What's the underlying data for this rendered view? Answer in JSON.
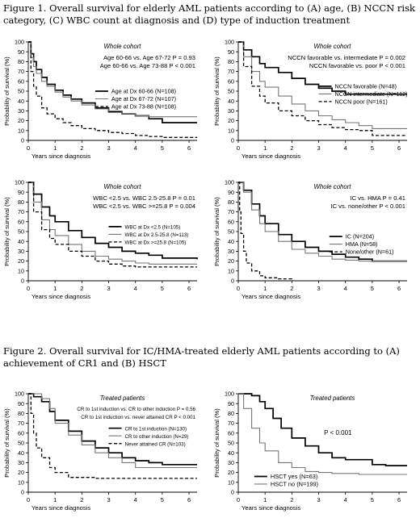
{
  "figure1": {
    "caption": "Figure 1.  Overall survival for elderly AML patients according to (A) age, (B) NCCN risk category, (C) WBC count at diagnosis and (D) type of induction treatment"
  },
  "figure2": {
    "caption": "Figure 2.  Overall survival for IC/HMA-treated elderly AML patients according to (A) achievement of CR1 and (B) HSCT"
  },
  "chart_data": [
    {
      "type": "line",
      "panel_title": "Whole cohort",
      "annotations": [
        "Age 60-66 vs. Age 67-72 P = 0.93",
        "Age 60-66 vs. Age 73-88 P < 0.001"
      ],
      "xlabel": "Years since diagnosis",
      "ylabel": "Probability of survival (%)",
      "xlim": [
        0,
        6.3
      ],
      "ylim": [
        0,
        100
      ],
      "xticks": [
        0,
        1,
        2,
        3,
        4,
        5,
        6
      ],
      "yticks": [
        0,
        10,
        20,
        30,
        40,
        50,
        60,
        70,
        80,
        90,
        100
      ],
      "legend_position": "center-right",
      "series": [
        {
          "name": "Age at Dx 60-66 (N=108)",
          "style": "solid-thick",
          "color": "#000000",
          "x": [
            0,
            0.1,
            0.2,
            0.3,
            0.5,
            0.7,
            1.0,
            1.3,
            1.6,
            2.0,
            2.5,
            3.0,
            3.5,
            4.0,
            4.5,
            5.0,
            6.3
          ],
          "y": [
            100,
            88,
            80,
            72,
            64,
            57,
            51,
            46,
            42,
            38,
            33,
            29,
            27,
            25,
            22,
            18,
            18
          ]
        },
        {
          "name": "Age at Dx 67-72 (N=107)",
          "style": "solid-thin",
          "color": "#777777",
          "x": [
            0,
            0.1,
            0.2,
            0.3,
            0.5,
            0.7,
            1.0,
            1.3,
            1.6,
            2.0,
            2.5,
            3.0,
            3.5,
            4.0,
            4.5,
            5.0,
            6.3
          ],
          "y": [
            100,
            84,
            75,
            68,
            60,
            55,
            49,
            44,
            40,
            36,
            32,
            30,
            27,
            25,
            24,
            24,
            24
          ]
        },
        {
          "name": "Age at Dx 73-88 (N=108)",
          "style": "dashed",
          "color": "#000000",
          "x": [
            0,
            0.1,
            0.2,
            0.3,
            0.5,
            0.7,
            1.0,
            1.3,
            1.6,
            2.0,
            2.5,
            3.0,
            3.5,
            4.0,
            4.5,
            5.0,
            6.3
          ],
          "y": [
            100,
            70,
            55,
            45,
            33,
            27,
            22,
            18,
            15,
            12,
            10,
            8,
            7,
            5,
            4,
            3,
            3
          ]
        }
      ]
    },
    {
      "type": "line",
      "panel_title": "Whole cohort",
      "annotations": [
        "NCCN favorable vs. intermediate P = 0.002",
        "NCCN favorable vs. poor P < 0.001"
      ],
      "xlabel": "Years since diagnosis",
      "ylabel": "Probability of survival (%)",
      "xlim": [
        0,
        6.3
      ],
      "ylim": [
        0,
        100
      ],
      "xticks": [
        0,
        1,
        2,
        3,
        4,
        5,
        6
      ],
      "yticks": [
        0,
        10,
        20,
        30,
        40,
        50,
        60,
        70,
        80,
        90,
        100
      ],
      "legend_position": "center-right",
      "series": [
        {
          "name": "NCCN favorable (N=48)",
          "style": "solid-thick",
          "color": "#000000",
          "x": [
            0,
            0.2,
            0.5,
            0.8,
            1.0,
            1.5,
            2.0,
            2.5,
            3.0,
            3.5,
            4.0,
            6.3
          ],
          "y": [
            100,
            92,
            85,
            78,
            74,
            69,
            63,
            57,
            53,
            50,
            47,
            47
          ]
        },
        {
          "name": "NCCN intermediate (N=112)",
          "style": "solid-thin",
          "color": "#777777",
          "x": [
            0,
            0.2,
            0.5,
            0.8,
            1.0,
            1.5,
            2.0,
            2.5,
            3.0,
            3.5,
            4.0,
            4.5,
            5.0,
            6.3
          ],
          "y": [
            100,
            85,
            70,
            60,
            54,
            45,
            37,
            30,
            25,
            21,
            18,
            15,
            12,
            12
          ]
        },
        {
          "name": "NCCN poor (N=161)",
          "style": "dashed",
          "color": "#000000",
          "x": [
            0,
            0.2,
            0.5,
            0.8,
            1.0,
            1.5,
            2.0,
            2.5,
            3.0,
            3.5,
            4.0,
            4.5,
            5.0,
            6.3
          ],
          "y": [
            100,
            75,
            55,
            45,
            38,
            30,
            25,
            20,
            16,
            13,
            11,
            10,
            5,
            5
          ]
        }
      ]
    },
    {
      "type": "line",
      "panel_title": "Whole cohort",
      "annotations": [
        "WBC <2.5 vs. WBC 2.5-25.8 P = 0.01",
        "WBC <2.5 vs. WBC >=25.8 P = 0.004"
      ],
      "xlabel": "Years since diagnosis",
      "ylabel": "Probability of survival (%)",
      "xlim": [
        0,
        6.3
      ],
      "ylim": [
        0,
        100
      ],
      "xticks": [
        0,
        1,
        2,
        3,
        4,
        5,
        6
      ],
      "yticks": [
        0,
        10,
        20,
        30,
        40,
        50,
        60,
        70,
        80,
        90,
        100
      ],
      "legend_position": "center-right",
      "series": [
        {
          "name": "WBC at Dx <2.5 (N=105)",
          "style": "solid-thick",
          "color": "#000000",
          "x": [
            0,
            0.2,
            0.5,
            0.8,
            1.0,
            1.5,
            2.0,
            2.5,
            3.0,
            3.5,
            4.0,
            4.5,
            5.0,
            6.3
          ],
          "y": [
            100,
            88,
            75,
            66,
            60,
            51,
            44,
            38,
            34,
            30,
            28,
            26,
            23,
            22
          ]
        },
        {
          "name": "WBC at Dx 2.5-25.8 (N=113)",
          "style": "solid-thin",
          "color": "#777777",
          "x": [
            0,
            0.2,
            0.5,
            0.8,
            1.0,
            1.5,
            2.0,
            2.5,
            3.0,
            3.5,
            4.0,
            4.5,
            5.0,
            6.3
          ],
          "y": [
            100,
            80,
            62,
            52,
            46,
            37,
            30,
            25,
            22,
            20,
            18,
            17,
            17,
            17
          ]
        },
        {
          "name": "WBC at Dx >=25.8 (N=105)",
          "style": "dashed",
          "color": "#000000",
          "x": [
            0,
            0.2,
            0.5,
            0.8,
            1.0,
            1.5,
            2.0,
            2.5,
            3.0,
            3.5,
            4.0,
            4.5,
            5.0,
            6.3
          ],
          "y": [
            100,
            70,
            52,
            43,
            37,
            30,
            25,
            20,
            17,
            15,
            14,
            14,
            14,
            14
          ]
        }
      ]
    },
    {
      "type": "line",
      "panel_title": "Whole cohort",
      "annotations": [
        "IC vs. HMA P = 0.41",
        "IC vs. none/other P < 0.001"
      ],
      "xlabel": "Years since diagnosis",
      "ylabel": "Probability of survival (%)",
      "xlim": [
        0,
        6.3
      ],
      "ylim": [
        0,
        100
      ],
      "xticks": [
        0,
        1,
        2,
        3,
        4,
        5,
        6
      ],
      "yticks": [
        0,
        10,
        20,
        30,
        40,
        50,
        60,
        70,
        80,
        90,
        100
      ],
      "legend_position": "center-right",
      "series": [
        {
          "name": "IC (N=204)",
          "style": "solid-thick",
          "color": "#000000",
          "x": [
            0,
            0.2,
            0.5,
            0.8,
            1.0,
            1.5,
            2.0,
            2.5,
            3.0,
            3.5,
            4.0,
            4.5,
            5.0,
            6.3
          ],
          "y": [
            100,
            92,
            78,
            66,
            58,
            47,
            40,
            34,
            30,
            27,
            24,
            22,
            20,
            20
          ]
        },
        {
          "name": "HMA (N=58)",
          "style": "solid-thin",
          "color": "#777777",
          "x": [
            0,
            0.2,
            0.5,
            0.8,
            1.0,
            1.5,
            2.0,
            2.5,
            3.0,
            3.5,
            4.0,
            4.5,
            5.0,
            6.3
          ],
          "y": [
            100,
            90,
            72,
            58,
            50,
            40,
            32,
            28,
            25,
            22,
            21,
            20,
            20,
            20
          ]
        },
        {
          "name": "None/other (N=61)",
          "style": "dashed",
          "color": "#000000",
          "x": [
            0,
            0.05,
            0.1,
            0.2,
            0.3,
            0.5,
            0.8,
            1.0,
            1.5,
            2.0
          ],
          "y": [
            100,
            70,
            48,
            30,
            18,
            10,
            5,
            3,
            2,
            0
          ]
        }
      ]
    },
    {
      "type": "line",
      "panel_title": "Treated patients",
      "annotations": [
        "CR to 1st induction vs. CR to other induction P = 0.56",
        "CR to 1st induction vs. never attained CR P < 0.001"
      ],
      "xlabel": "Years since diagnosis",
      "ylabel": "Probability of survival (%)",
      "xlim": [
        0,
        6.3
      ],
      "ylim": [
        0,
        100
      ],
      "xticks": [
        0,
        1,
        2,
        3,
        4,
        5,
        6
      ],
      "yticks": [
        0,
        10,
        20,
        30,
        40,
        50,
        60,
        70,
        80,
        90,
        100
      ],
      "legend_position": "center-right",
      "series": [
        {
          "name": "CR to 1st induction (N=130)",
          "style": "solid-thick",
          "color": "#000000",
          "x": [
            0,
            0.2,
            0.5,
            0.8,
            1.0,
            1.5,
            2.0,
            2.5,
            3.0,
            3.5,
            4.0,
            4.5,
            5.0,
            6.3
          ],
          "y": [
            100,
            97,
            92,
            82,
            73,
            62,
            52,
            45,
            40,
            35,
            32,
            30,
            28,
            28
          ]
        },
        {
          "name": "CR to other induction (N=29)",
          "style": "solid-thin",
          "color": "#777777",
          "x": [
            0,
            0.2,
            0.5,
            0.8,
            1.0,
            1.5,
            2.0,
            2.5,
            3.0,
            3.5,
            4.0,
            4.5,
            5.0,
            6.3
          ],
          "y": [
            100,
            100,
            95,
            85,
            70,
            58,
            48,
            40,
            35,
            30,
            25,
            25,
            25,
            25
          ]
        },
        {
          "name": "Never attained CR (N=103)",
          "style": "dashed",
          "color": "#000000",
          "x": [
            0,
            0.1,
            0.2,
            0.3,
            0.5,
            0.8,
            1.0,
            1.5,
            2.0,
            2.5,
            3.0,
            4.0,
            5.0,
            6.3
          ],
          "y": [
            100,
            80,
            60,
            45,
            35,
            25,
            20,
            15,
            15,
            14,
            14,
            14,
            14,
            14
          ]
        }
      ]
    },
    {
      "type": "line",
      "panel_title": "Treated patients",
      "annotations": [
        "P < 0.001"
      ],
      "xlabel": "Years since diagnosis",
      "ylabel": "Probability of survival (%)",
      "xlim": [
        0,
        6.3
      ],
      "ylim": [
        0,
        100
      ],
      "xticks": [
        0,
        1,
        2,
        3,
        4,
        5,
        6
      ],
      "yticks": [
        0,
        10,
        20,
        30,
        40,
        50,
        60,
        70,
        80,
        90,
        100
      ],
      "legend_position": "bottom-left",
      "series": [
        {
          "name": "HSCT yes (N=63)",
          "style": "solid-thick",
          "color": "#000000",
          "x": [
            0,
            0.3,
            0.5,
            0.8,
            1.0,
            1.3,
            1.6,
            2.0,
            2.5,
            3.0,
            3.5,
            4.0,
            4.5,
            5.0,
            5.5,
            6.3
          ],
          "y": [
            100,
            100,
            98,
            92,
            85,
            75,
            65,
            55,
            47,
            40,
            35,
            33,
            33,
            28,
            27,
            27
          ]
        },
        {
          "name": "HSCT no (N=199)",
          "style": "solid-thin",
          "color": "#777777",
          "x": [
            0,
            0.2,
            0.5,
            0.8,
            1.0,
            1.5,
            2.0,
            2.5,
            3.0,
            3.5,
            4.0,
            4.5,
            5.0,
            6.3
          ],
          "y": [
            100,
            85,
            65,
            50,
            42,
            30,
            25,
            21,
            20,
            19,
            19,
            18,
            18,
            18
          ]
        }
      ]
    }
  ]
}
